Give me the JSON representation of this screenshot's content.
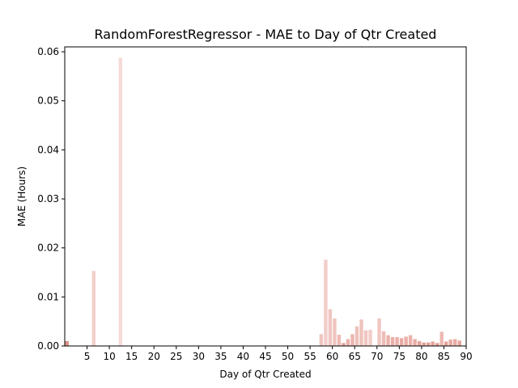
{
  "chart_data": {
    "type": "bar",
    "title": "RandomForestRegressor - MAE to Day of Qtr Created",
    "xlabel": "Day of Qtr Created",
    "ylabel": "MAE (Hours)",
    "xlim": [
      0,
      90
    ],
    "ylim": [
      0,
      0.061
    ],
    "xticks": [
      "5",
      "10",
      "15",
      "20",
      "25",
      "30",
      "35",
      "40",
      "45",
      "50",
      "55",
      "60",
      "65",
      "70",
      "75",
      "80",
      "85",
      "90"
    ],
    "yticks": [
      "0.00",
      "0.01",
      "0.02",
      "0.03",
      "0.04",
      "0.05",
      "0.06"
    ],
    "grid": false,
    "bar_color": "#f2d0cc",
    "bar_color_dark": "#e3968c",
    "bars": [
      {
        "day": 0,
        "value": 0.001,
        "color": "#d99389"
      },
      {
        "day": 6,
        "value": 0.0153,
        "color": "#f2d0cc"
      },
      {
        "day": 12,
        "value": 0.0588,
        "color": "#f5dbd7"
      },
      {
        "day": 57,
        "value": 0.0024,
        "color": "#f0c4bf"
      },
      {
        "day": 58,
        "value": 0.0176,
        "color": "#f2cdc9"
      },
      {
        "day": 59,
        "value": 0.0075,
        "color": "#f0c6c1"
      },
      {
        "day": 60,
        "value": 0.0056,
        "color": "#f0c4bf"
      },
      {
        "day": 61,
        "value": 0.0023,
        "color": "#eebbb5"
      },
      {
        "day": 62,
        "value": 0.0006,
        "color": "#e3a197"
      },
      {
        "day": 63,
        "value": 0.0014,
        "color": "#eab1aa"
      },
      {
        "day": 64,
        "value": 0.0024,
        "color": "#ecb6af"
      },
      {
        "day": 65,
        "value": 0.004,
        "color": "#efc1bb"
      },
      {
        "day": 66,
        "value": 0.0054,
        "color": "#efc2bc"
      },
      {
        "day": 67,
        "value": 0.0032,
        "color": "#f0c6c1"
      },
      {
        "day": 68,
        "value": 0.0033,
        "color": "#f2cdc9"
      },
      {
        "day": 70,
        "value": 0.0056,
        "color": "#f0c6c1"
      },
      {
        "day": 71,
        "value": 0.003,
        "color": "#eebcb6"
      },
      {
        "day": 72,
        "value": 0.0022,
        "color": "#ebb3ac"
      },
      {
        "day": 73,
        "value": 0.0018,
        "color": "#eab0a8"
      },
      {
        "day": 74,
        "value": 0.0018,
        "color": "#eab0a8"
      },
      {
        "day": 75,
        "value": 0.0016,
        "color": "#e9aca4"
      },
      {
        "day": 76,
        "value": 0.0019,
        "color": "#eab0a8"
      },
      {
        "day": 77,
        "value": 0.0022,
        "color": "#ebb3ac"
      },
      {
        "day": 78,
        "value": 0.0014,
        "color": "#e9aca4"
      },
      {
        "day": 79,
        "value": 0.001,
        "color": "#e6a59d"
      },
      {
        "day": 80,
        "value": 0.0007,
        "color": "#e3a098"
      },
      {
        "day": 81,
        "value": 0.0007,
        "color": "#e3a098"
      },
      {
        "day": 82,
        "value": 0.0009,
        "color": "#e5a39b"
      },
      {
        "day": 83,
        "value": 0.0006,
        "color": "#e09a91"
      },
      {
        "day": 84,
        "value": 0.0029,
        "color": "#edb9b2"
      },
      {
        "day": 85,
        "value": 0.0009,
        "color": "#e5a39b"
      },
      {
        "day": 86,
        "value": 0.0013,
        "color": "#e8aaa2"
      },
      {
        "day": 87,
        "value": 0.0014,
        "color": "#e9aca4"
      },
      {
        "day": 88,
        "value": 0.0011,
        "color": "#e6a79f"
      }
    ]
  }
}
